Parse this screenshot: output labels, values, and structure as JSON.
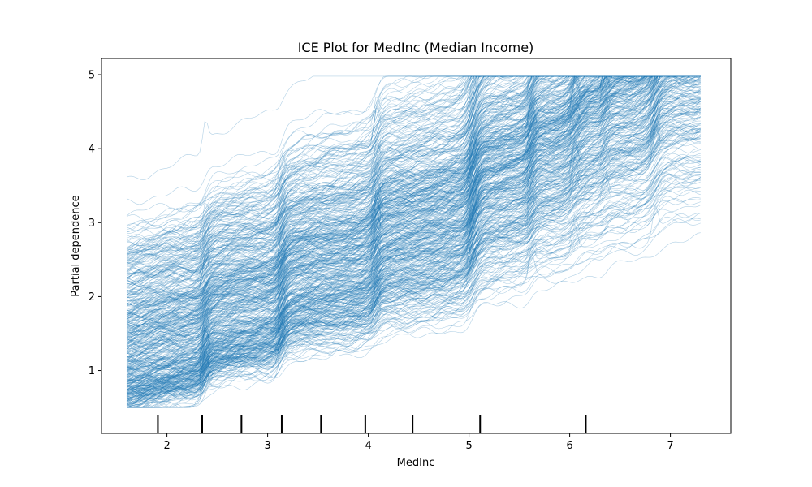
{
  "chart_data": {
    "type": "line",
    "title": "ICE Plot for MedInc (Median Income)",
    "xlabel": "MedInc",
    "ylabel": "Partial dependence",
    "xlim": [
      1.35,
      7.6
    ],
    "ylim": [
      0.15,
      5.22
    ],
    "x_ticks": [
      2,
      3,
      4,
      5,
      6,
      7
    ],
    "y_ticks": [
      1,
      2,
      3,
      4,
      5
    ],
    "grid": false,
    "line_color": "#1f77b4",
    "x_range": [
      1.6,
      7.3
    ],
    "n_curves": 500,
    "y_at_xmin_range": [
      0.5,
      3.7
    ],
    "y_at_xmax_range": [
      2.5,
      4.9
    ],
    "approx_series": [
      {
        "x": [
          1.6,
          2.2,
          2.4,
          3.1,
          3.2,
          4.1,
          4.2,
          5.0,
          5.1,
          5.6,
          6.2,
          6.4,
          6.8,
          7.3
        ],
        "y": [
          0.75,
          0.8,
          0.9,
          1.0,
          1.1,
          1.2,
          1.35,
          1.5,
          1.9,
          2.1,
          2.5,
          2.7,
          3.0,
          3.1
        ]
      },
      {
        "x": [
          1.6,
          2.2,
          2.4,
          3.1,
          3.2,
          4.1,
          4.2,
          5.0,
          5.1,
          5.6,
          6.2,
          6.4,
          6.8,
          7.3
        ],
        "y": [
          1.5,
          1.6,
          1.75,
          1.85,
          2.0,
          2.1,
          2.3,
          2.45,
          2.9,
          3.0,
          3.1,
          3.3,
          3.6,
          3.7
        ]
      },
      {
        "x": [
          1.6,
          2.2,
          2.4,
          3.1,
          3.2,
          4.1,
          4.2,
          5.0,
          5.1,
          5.6,
          6.2,
          6.4,
          6.8,
          7.3
        ],
        "y": [
          2.2,
          2.3,
          2.6,
          2.8,
          3.1,
          3.3,
          3.6,
          3.9,
          4.3,
          4.5,
          4.5,
          4.6,
          4.6,
          4.7
        ]
      }
    ],
    "rug_marks": [
      1.91,
      2.35,
      2.74,
      3.14,
      3.53,
      3.97,
      4.44,
      5.11,
      6.16
    ]
  }
}
